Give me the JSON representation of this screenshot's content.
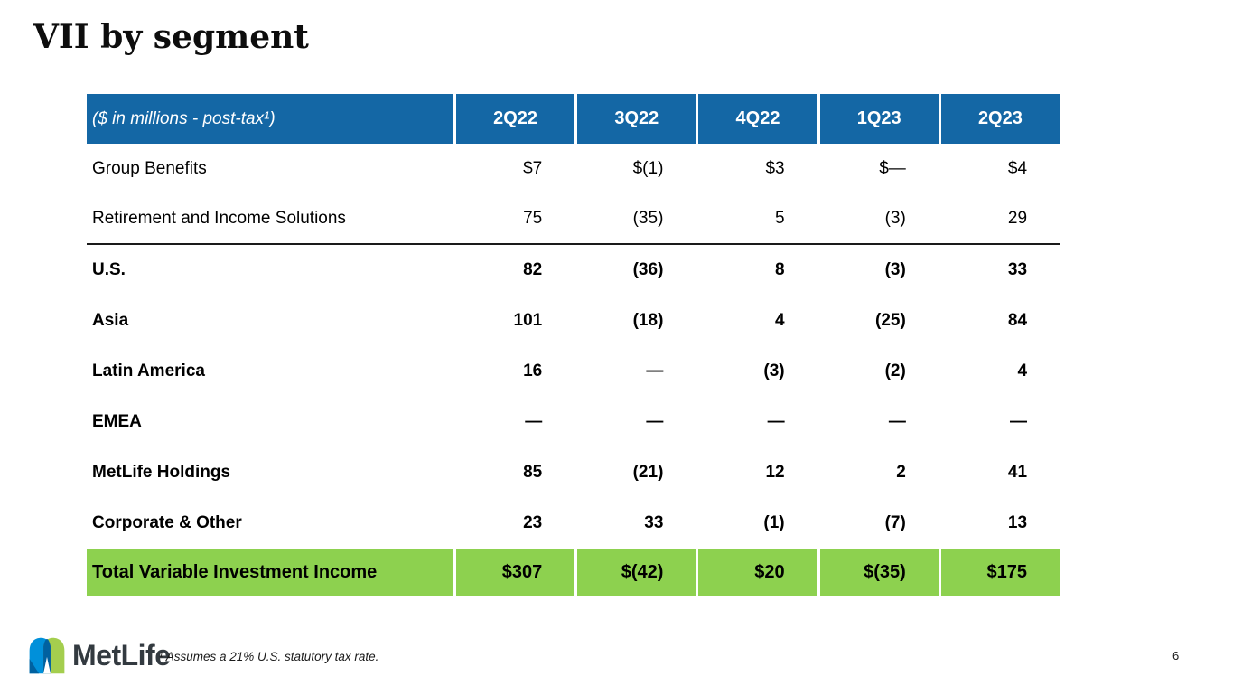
{
  "slide": {
    "title": "VII by segment",
    "page_number": "6",
    "footnote": "¹ Assumes a 21% U.S. statutory tax rate.",
    "logo_text": "MetLife"
  },
  "table": {
    "header": {
      "label": "($ in millions - post-tax¹)",
      "columns": [
        "2Q22",
        "3Q22",
        "4Q22",
        "1Q23",
        "2Q23"
      ]
    },
    "rows": [
      {
        "label": "Group Benefits",
        "values": [
          "$7",
          "$(1)",
          "$3",
          "$—",
          "$4"
        ],
        "bold": false,
        "divider_below": false
      },
      {
        "label": "Retirement and Income Solutions",
        "values": [
          "75",
          "(35)",
          "5",
          "(3)",
          "29"
        ],
        "bold": false,
        "divider_below": true
      },
      {
        "label": "U.S.",
        "values": [
          "82",
          "(36)",
          "8",
          "(3)",
          "33"
        ],
        "bold": true,
        "divider_below": false
      },
      {
        "label": "Asia",
        "values": [
          "101",
          "(18)",
          "4",
          "(25)",
          "84"
        ],
        "bold": true,
        "divider_below": false
      },
      {
        "label": "Latin America",
        "values": [
          "16",
          "—",
          "(3)",
          "(2)",
          "4"
        ],
        "bold": true,
        "divider_below": false
      },
      {
        "label": "EMEA",
        "values": [
          "—",
          "—",
          "—",
          "—",
          "—"
        ],
        "bold": true,
        "divider_below": false
      },
      {
        "label": "MetLife Holdings",
        "values": [
          "85",
          "(21)",
          "12",
          "2",
          "41"
        ],
        "bold": true,
        "divider_below": false
      },
      {
        "label": "Corporate & Other",
        "values": [
          "23",
          "33",
          "(1)",
          "(7)",
          "13"
        ],
        "bold": true,
        "divider_below": false
      }
    ],
    "total_row": {
      "label": "Total Variable Investment Income",
      "values": [
        "$307",
        "$(42)",
        "$20",
        "$(35)",
        "$175"
      ]
    }
  },
  "colors": {
    "header_bg": "#1467A5",
    "total_bg": "#8DD14F",
    "logo_light_blue": "#0090DA",
    "logo_dark_blue": "#0061A0",
    "logo_green": "#A4CE4E",
    "wordmark_color": "#333A40"
  }
}
